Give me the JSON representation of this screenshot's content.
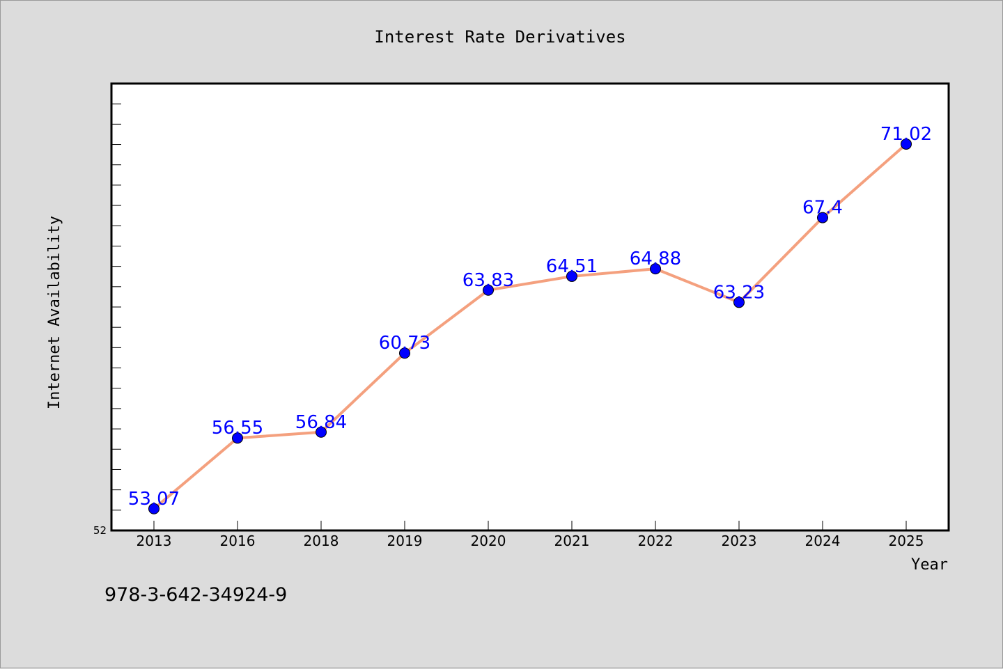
{
  "chart_data": {
    "type": "line",
    "title": "Interest Rate Derivatives",
    "xlabel": "Year",
    "ylabel": "Internet Availability",
    "categories": [
      "2013",
      "2016",
      "2018",
      "2019",
      "2020",
      "2021",
      "2022",
      "2023",
      "2024",
      "2025"
    ],
    "series": [
      {
        "values": [
          53.07,
          56.55,
          56.84,
          60.73,
          63.83,
          64.51,
          64.88,
          63.23,
          67.4,
          71.02
        ],
        "labels": [
          "53.07",
          "56.55",
          "56.84",
          "60.73",
          "63.83",
          "64.51",
          "64.88",
          "63.23",
          "67.4",
          "71.02"
        ]
      }
    ],
    "ylim": [
      52,
      74
    ],
    "y_tick_label": "52",
    "grid": false,
    "line_color": "#f4a07e",
    "marker_color": "#0000ff",
    "label_color": "#0000ff"
  },
  "footnote": "978-3-642-34924-9"
}
